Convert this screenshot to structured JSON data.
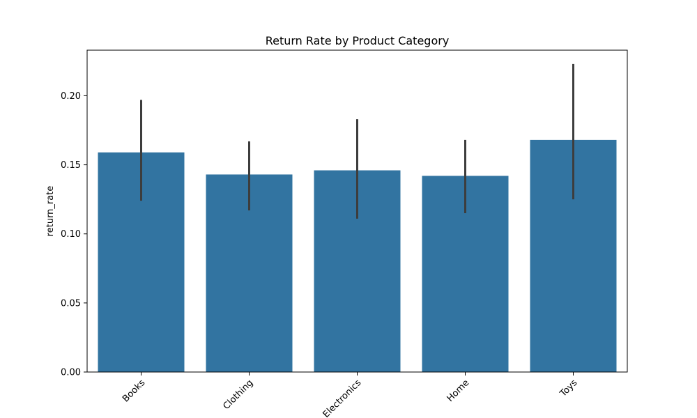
{
  "chart_data": {
    "type": "bar",
    "title": "Return Rate by Product Category",
    "xlabel": "",
    "ylabel": "return_rate",
    "categories": [
      "Books",
      "Clothing",
      "Electronics",
      "Home",
      "Toys"
    ],
    "values": [
      0.159,
      0.143,
      0.146,
      0.142,
      0.168
    ],
    "error_low": [
      0.124,
      0.117,
      0.111,
      0.115,
      0.125
    ],
    "error_high": [
      0.197,
      0.167,
      0.183,
      0.168,
      0.223
    ],
    "ylim": [
      0,
      0.233
    ],
    "yticks": [
      "0.00",
      "0.05",
      "0.10",
      "0.15",
      "0.20"
    ],
    "bar_color": "#3274a1",
    "error_color": "#3d3d3d",
    "grid": false
  }
}
